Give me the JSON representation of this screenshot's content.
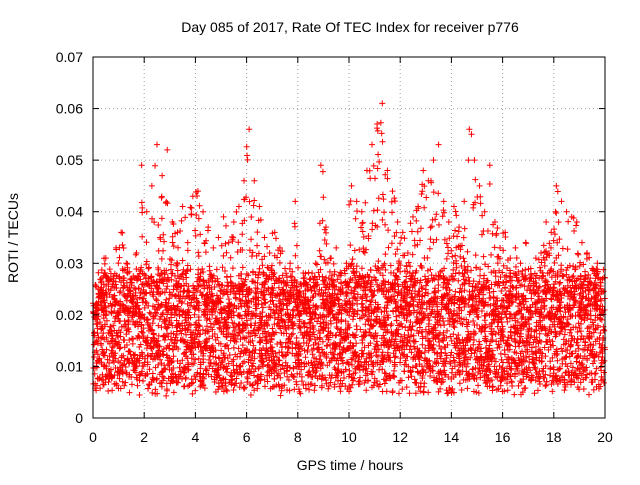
{
  "chart_data": {
    "type": "scatter",
    "title": "Day 085 of 2017, Rate Of TEC Index for receiver p776",
    "xlabel": "GPS time / hours",
    "ylabel": "ROTI / TECUs",
    "xlim": [
      0,
      20
    ],
    "ylim": [
      0,
      0.07
    ],
    "xticks": [
      "0",
      "2",
      "4",
      "6",
      "8",
      "10",
      "12",
      "14",
      "16",
      "18",
      "20"
    ],
    "yticks": [
      "0",
      "0.01",
      "0.02",
      "0.03",
      "0.04",
      "0.05",
      "0.06",
      "0.07"
    ],
    "grid": true,
    "marker": "plus",
    "series": [
      {
        "name": "ROTI",
        "color": "#ff0000",
        "x": [
          0.1,
          0.3,
          0.5,
          0.7,
          0.9,
          1.1,
          1.3,
          1.5,
          1.7,
          1.9,
          2.1,
          2.3,
          2.5,
          2.7,
          2.9,
          3.1,
          3.3,
          3.5,
          3.7,
          3.9,
          4.1,
          4.3,
          4.5,
          4.7,
          4.9,
          5.1,
          5.3,
          5.5,
          5.7,
          5.9,
          6.1,
          6.3,
          6.5,
          6.7,
          6.9,
          7.1,
          7.3,
          7.5,
          7.7,
          7.9,
          8.1,
          8.3,
          8.5,
          8.7,
          8.9,
          9.1,
          9.3,
          9.5,
          9.7,
          9.9,
          10.1,
          10.3,
          10.5,
          10.7,
          10.9,
          11.1,
          11.3,
          11.5,
          11.7,
          11.9,
          12.1,
          12.3,
          12.5,
          12.7,
          12.9,
          13.1,
          13.3,
          13.5,
          13.7,
          13.9,
          14.1,
          14.3,
          14.5,
          14.7,
          14.9,
          15.1,
          15.3,
          15.5,
          15.7,
          15.9,
          16.1,
          16.3,
          16.5,
          16.7,
          16.9,
          17.1,
          17.3,
          17.5,
          17.7,
          17.9,
          18.1,
          18.3,
          18.5,
          18.7,
          18.9,
          19.1,
          19.3,
          19.5,
          19.7,
          19.9
        ],
        "y": [
          0.022,
          0.025,
          0.031,
          0.028,
          0.033,
          0.036,
          0.03,
          0.027,
          0.032,
          0.049,
          0.04,
          0.045,
          0.053,
          0.047,
          0.052,
          0.038,
          0.036,
          0.041,
          0.034,
          0.043,
          0.044,
          0.04,
          0.037,
          0.033,
          0.035,
          0.039,
          0.034,
          0.038,
          0.041,
          0.046,
          0.056,
          0.046,
          0.041,
          0.035,
          0.032,
          0.036,
          0.033,
          0.029,
          0.03,
          0.042,
          0.026,
          0.028,
          0.027,
          0.03,
          0.049,
          0.037,
          0.031,
          0.033,
          0.028,
          0.03,
          0.045,
          0.042,
          0.04,
          0.048,
          0.053,
          0.057,
          0.061,
          0.048,
          0.044,
          0.038,
          0.036,
          0.032,
          0.039,
          0.041,
          0.048,
          0.046,
          0.05,
          0.053,
          0.042,
          0.038,
          0.041,
          0.037,
          0.042,
          0.056,
          0.05,
          0.045,
          0.04,
          0.049,
          0.038,
          0.033,
          0.036,
          0.031,
          0.033,
          0.03,
          0.034,
          0.029,
          0.031,
          0.032,
          0.038,
          0.036,
          0.045,
          0.042,
          0.04,
          0.039,
          0.038,
          0.034,
          0.032,
          0.029,
          0.03,
          0.027
        ]
      }
    ]
  }
}
